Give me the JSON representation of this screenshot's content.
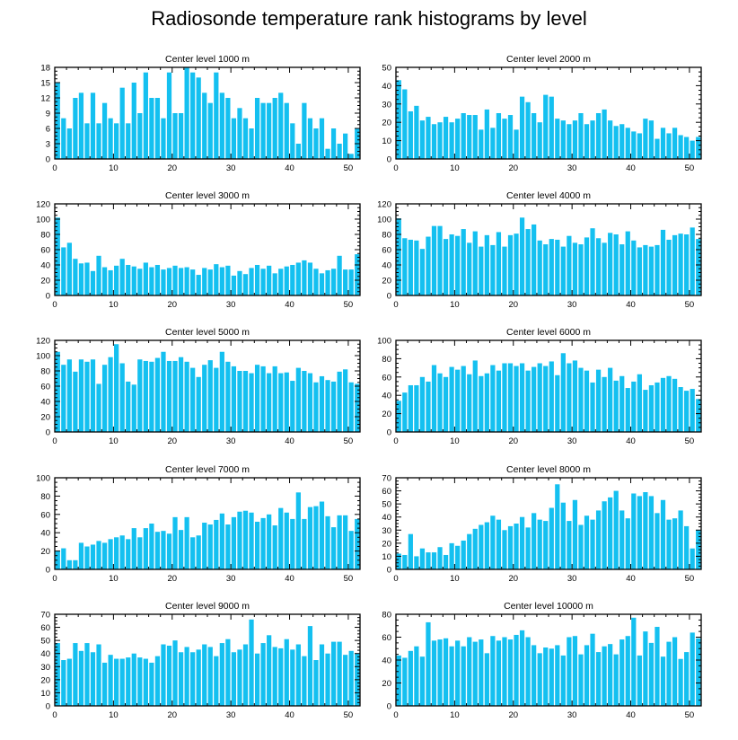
{
  "title": "Radiosonde temperature rank histograms by level",
  "bar_color": "#14c0f0",
  "chart_data": [
    {
      "type": "bar",
      "title": "Center level 1000 m",
      "xlim": [
        0,
        52
      ],
      "xticks": [
        0,
        10,
        20,
        30,
        40,
        50
      ],
      "ylim": [
        0,
        18
      ],
      "yticks": [
        0,
        3,
        6,
        9,
        12,
        15,
        18
      ],
      "x": [
        0,
        1,
        2,
        3,
        4,
        5,
        6,
        7,
        8,
        9,
        10,
        11,
        12,
        13,
        14,
        15,
        16,
        17,
        18,
        19,
        20,
        21,
        22,
        23,
        24,
        25,
        26,
        27,
        28,
        29,
        30,
        31,
        32,
        33,
        34,
        35,
        36,
        37,
        38,
        39,
        40,
        41,
        42,
        43,
        44,
        45,
        46,
        47,
        48,
        49,
        50,
        51
      ],
      "values": [
        15,
        8,
        6,
        12,
        13,
        7,
        13,
        7,
        11,
        8,
        7,
        14,
        7,
        15,
        9,
        17,
        12,
        12,
        8,
        17,
        9,
        9,
        18,
        17,
        16,
        13,
        11,
        17,
        13,
        12,
        8,
        10,
        8,
        6,
        12,
        11,
        11,
        12,
        13,
        11,
        7,
        3,
        11,
        8,
        6,
        8,
        2,
        6,
        3,
        5,
        1,
        6
      ]
    },
    {
      "type": "bar",
      "title": "Center level 2000 m",
      "xlim": [
        0,
        52
      ],
      "xticks": [
        0,
        10,
        20,
        30,
        40,
        50
      ],
      "ylim": [
        0,
        50
      ],
      "yticks": [
        0,
        10,
        20,
        30,
        40,
        50
      ],
      "x": [
        0,
        1,
        2,
        3,
        4,
        5,
        6,
        7,
        8,
        9,
        10,
        11,
        12,
        13,
        14,
        15,
        16,
        17,
        18,
        19,
        20,
        21,
        22,
        23,
        24,
        25,
        26,
        27,
        28,
        29,
        30,
        31,
        32,
        33,
        34,
        35,
        36,
        37,
        38,
        39,
        40,
        41,
        42,
        43,
        44,
        45,
        46,
        47,
        48,
        49,
        50,
        51
      ],
      "values": [
        43,
        38,
        26,
        29,
        21,
        23,
        19,
        20,
        23,
        20,
        22,
        25,
        24,
        24,
        16,
        27,
        17,
        25,
        22,
        24,
        16,
        34,
        31,
        25,
        20,
        35,
        34,
        22,
        21,
        19,
        21,
        25,
        19,
        21,
        25,
        27,
        21,
        18,
        19,
        17,
        15,
        14,
        22,
        21,
        11,
        17,
        14,
        17,
        13,
        12,
        10,
        12
      ]
    },
    {
      "type": "bar",
      "title": "Center level 3000 m",
      "xlim": [
        0,
        52
      ],
      "xticks": [
        0,
        10,
        20,
        30,
        40,
        50
      ],
      "ylim": [
        0,
        120
      ],
      "yticks": [
        0,
        20,
        40,
        60,
        80,
        100,
        120
      ],
      "x": [
        0,
        1,
        2,
        3,
        4,
        5,
        6,
        7,
        8,
        9,
        10,
        11,
        12,
        13,
        14,
        15,
        16,
        17,
        18,
        19,
        20,
        21,
        22,
        23,
        24,
        25,
        26,
        27,
        28,
        29,
        30,
        31,
        32,
        33,
        34,
        35,
        36,
        37,
        38,
        39,
        40,
        41,
        42,
        43,
        44,
        45,
        46,
        47,
        48,
        49,
        50,
        51
      ],
      "values": [
        102,
        63,
        69,
        48,
        42,
        43,
        32,
        52,
        37,
        33,
        39,
        48,
        40,
        38,
        35,
        43,
        37,
        40,
        34,
        36,
        39,
        36,
        37,
        34,
        27,
        36,
        34,
        41,
        37,
        39,
        26,
        32,
        28,
        36,
        40,
        35,
        39,
        29,
        35,
        38,
        40,
        43,
        46,
        43,
        35,
        29,
        33,
        35,
        52,
        34,
        34,
        54
      ]
    },
    {
      "type": "bar",
      "title": "Center level 4000 m",
      "xlim": [
        0,
        52
      ],
      "xticks": [
        0,
        10,
        20,
        30,
        40,
        50
      ],
      "ylim": [
        0,
        120
      ],
      "yticks": [
        0,
        20,
        40,
        60,
        80,
        100,
        120
      ],
      "x": [
        0,
        1,
        2,
        3,
        4,
        5,
        6,
        7,
        8,
        9,
        10,
        11,
        12,
        13,
        14,
        15,
        16,
        17,
        18,
        19,
        20,
        21,
        22,
        23,
        24,
        25,
        26,
        27,
        28,
        29,
        30,
        31,
        32,
        33,
        34,
        35,
        36,
        37,
        38,
        39,
        40,
        41,
        42,
        43,
        44,
        45,
        46,
        47,
        48,
        49,
        50,
        51
      ],
      "values": [
        101,
        75,
        73,
        72,
        61,
        77,
        91,
        91,
        74,
        80,
        78,
        87,
        69,
        84,
        64,
        79,
        66,
        83,
        64,
        79,
        81,
        102,
        87,
        93,
        72,
        67,
        74,
        73,
        64,
        78,
        69,
        67,
        76,
        88,
        75,
        69,
        82,
        80,
        67,
        84,
        72,
        63,
        66,
        64,
        66,
        86,
        73,
        79,
        81,
        80,
        89,
        74
      ]
    },
    {
      "type": "bar",
      "title": "Center level 5000 m",
      "xlim": [
        0,
        52
      ],
      "xticks": [
        0,
        10,
        20,
        30,
        40,
        50
      ],
      "ylim": [
        0,
        120
      ],
      "yticks": [
        0,
        20,
        40,
        60,
        80,
        100,
        120
      ],
      "x": [
        0,
        1,
        2,
        3,
        4,
        5,
        6,
        7,
        8,
        9,
        10,
        11,
        12,
        13,
        14,
        15,
        16,
        17,
        18,
        19,
        20,
        21,
        22,
        23,
        24,
        25,
        26,
        27,
        28,
        29,
        30,
        31,
        32,
        33,
        34,
        35,
        36,
        37,
        38,
        39,
        40,
        41,
        42,
        43,
        44,
        45,
        46,
        47,
        48,
        49,
        50,
        51
      ],
      "values": [
        105,
        88,
        95,
        79,
        95,
        92,
        95,
        63,
        88,
        98,
        115,
        90,
        66,
        62,
        95,
        93,
        92,
        97,
        105,
        93,
        93,
        98,
        92,
        84,
        72,
        88,
        94,
        84,
        105,
        92,
        86,
        80,
        80,
        77,
        88,
        86,
        77,
        86,
        77,
        78,
        67,
        84,
        80,
        77,
        65,
        73,
        68,
        66,
        79,
        82,
        65,
        63
      ]
    },
    {
      "type": "bar",
      "title": "Center level 6000 m",
      "xlim": [
        0,
        52
      ],
      "xticks": [
        0,
        10,
        20,
        30,
        40,
        50
      ],
      "ylim": [
        0,
        100
      ],
      "yticks": [
        0,
        20,
        40,
        60,
        80,
        100
      ],
      "x": [
        0,
        1,
        2,
        3,
        4,
        5,
        6,
        7,
        8,
        9,
        10,
        11,
        12,
        13,
        14,
        15,
        16,
        17,
        18,
        19,
        20,
        21,
        22,
        23,
        24,
        25,
        26,
        27,
        28,
        29,
        30,
        31,
        32,
        33,
        34,
        35,
        36,
        37,
        38,
        39,
        40,
        41,
        42,
        43,
        44,
        45,
        46,
        47,
        48,
        49,
        50,
        51
      ],
      "values": [
        34,
        43,
        51,
        51,
        60,
        55,
        73,
        64,
        60,
        71,
        68,
        72,
        63,
        78,
        61,
        64,
        73,
        67,
        75,
        75,
        72,
        75,
        67,
        71,
        75,
        72,
        77,
        62,
        86,
        75,
        78,
        70,
        67,
        54,
        68,
        60,
        70,
        56,
        61,
        48,
        55,
        63,
        46,
        51,
        54,
        59,
        61,
        58,
        49,
        45,
        47,
        36
      ]
    },
    {
      "type": "bar",
      "title": "Center level 7000 m",
      "xlim": [
        0,
        52
      ],
      "xticks": [
        0,
        10,
        20,
        30,
        40,
        50
      ],
      "ylim": [
        0,
        100
      ],
      "yticks": [
        0,
        20,
        40,
        60,
        80,
        100
      ],
      "x": [
        0,
        1,
        2,
        3,
        4,
        5,
        6,
        7,
        8,
        9,
        10,
        11,
        12,
        13,
        14,
        15,
        16,
        17,
        18,
        19,
        20,
        21,
        22,
        23,
        24,
        25,
        26,
        27,
        28,
        29,
        30,
        31,
        32,
        33,
        34,
        35,
        36,
        37,
        38,
        39,
        40,
        41,
        42,
        43,
        44,
        45,
        46,
        47,
        48,
        49,
        50,
        51
      ],
      "values": [
        20,
        23,
        10,
        10,
        29,
        25,
        27,
        31,
        29,
        33,
        35,
        37,
        33,
        45,
        35,
        45,
        50,
        41,
        42,
        39,
        57,
        43,
        57,
        35,
        37,
        51,
        49,
        54,
        61,
        49,
        57,
        63,
        64,
        62,
        52,
        56,
        60,
        48,
        67,
        62,
        55,
        84,
        55,
        68,
        69,
        74,
        58,
        46,
        59,
        59,
        42,
        55
      ]
    },
    {
      "type": "bar",
      "title": "Center level 8000 m",
      "xlim": [
        0,
        52
      ],
      "xticks": [
        0,
        10,
        20,
        30,
        40,
        50
      ],
      "ylim": [
        0,
        70
      ],
      "yticks": [
        0,
        10,
        20,
        30,
        40,
        50,
        60,
        70
      ],
      "x": [
        0,
        1,
        2,
        3,
        4,
        5,
        6,
        7,
        8,
        9,
        10,
        11,
        12,
        13,
        14,
        15,
        16,
        17,
        18,
        19,
        20,
        21,
        22,
        23,
        24,
        25,
        26,
        27,
        28,
        29,
        30,
        31,
        32,
        33,
        34,
        35,
        36,
        37,
        38,
        39,
        40,
        41,
        42,
        43,
        44,
        45,
        46,
        47,
        48,
        49,
        50,
        51
      ],
      "values": [
        12,
        11,
        27,
        10,
        16,
        13,
        13,
        17,
        11,
        20,
        18,
        22,
        27,
        31,
        34,
        36,
        41,
        38,
        30,
        33,
        35,
        40,
        32,
        43,
        38,
        37,
        47,
        65,
        51,
        37,
        53,
        34,
        41,
        38,
        45,
        52,
        55,
        60,
        45,
        39,
        58,
        56,
        59,
        56,
        43,
        53,
        38,
        39,
        45,
        33,
        16,
        30
      ]
    },
    {
      "type": "bar",
      "title": "Center level 9000 m",
      "xlim": [
        0,
        52
      ],
      "xticks": [
        0,
        10,
        20,
        30,
        40,
        50
      ],
      "ylim": [
        0,
        70
      ],
      "yticks": [
        0,
        10,
        20,
        30,
        40,
        50,
        60,
        70
      ],
      "x": [
        0,
        1,
        2,
        3,
        4,
        5,
        6,
        7,
        8,
        9,
        10,
        11,
        12,
        13,
        14,
        15,
        16,
        17,
        18,
        19,
        20,
        21,
        22,
        23,
        24,
        25,
        26,
        27,
        28,
        29,
        30,
        31,
        32,
        33,
        34,
        35,
        36,
        37,
        38,
        39,
        40,
        41,
        42,
        43,
        44,
        45,
        46,
        47,
        48,
        49,
        50,
        51
      ],
      "values": [
        48,
        35,
        36,
        48,
        42,
        48,
        41,
        47,
        33,
        39,
        36,
        36,
        37,
        40,
        37,
        36,
        33,
        38,
        47,
        46,
        50,
        41,
        45,
        41,
        43,
        47,
        45,
        38,
        48,
        51,
        41,
        43,
        47,
        66,
        40,
        48,
        54,
        45,
        44,
        51,
        43,
        47,
        38,
        61,
        35,
        47,
        40,
        49,
        49,
        39,
        42,
        40
      ]
    },
    {
      "type": "bar",
      "title": "Center level 10000 m",
      "xlim": [
        0,
        52
      ],
      "xticks": [
        0,
        10,
        20,
        30,
        40,
        50
      ],
      "ylim": [
        0,
        80
      ],
      "yticks": [
        0,
        20,
        40,
        60,
        80
      ],
      "x": [
        0,
        1,
        2,
        3,
        4,
        5,
        6,
        7,
        8,
        9,
        10,
        11,
        12,
        13,
        14,
        15,
        16,
        17,
        18,
        19,
        20,
        21,
        22,
        23,
        24,
        25,
        26,
        27,
        28,
        29,
        30,
        31,
        32,
        33,
        34,
        35,
        36,
        37,
        38,
        39,
        40,
        41,
        42,
        43,
        44,
        45,
        46,
        47,
        48,
        49,
        50,
        51
      ],
      "values": [
        44,
        42,
        48,
        52,
        43,
        73,
        57,
        58,
        59,
        52,
        57,
        52,
        60,
        56,
        58,
        46,
        61,
        57,
        60,
        58,
        62,
        66,
        60,
        53,
        46,
        51,
        50,
        53,
        44,
        60,
        61,
        45,
        53,
        63,
        47,
        52,
        54,
        45,
        58,
        61,
        77,
        44,
        65,
        55,
        69,
        43,
        56,
        60,
        41,
        47,
        64,
        59
      ]
    }
  ]
}
